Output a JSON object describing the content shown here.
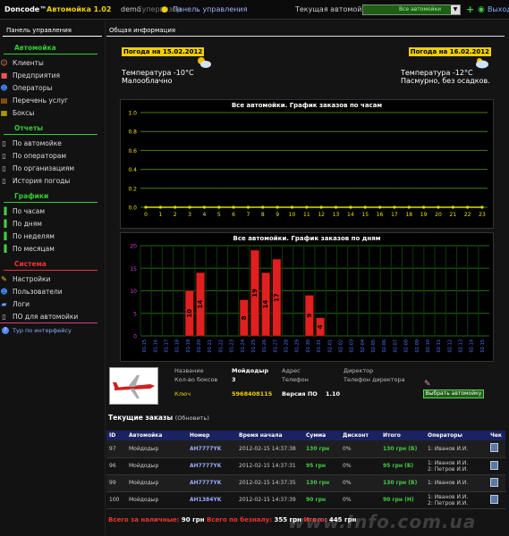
{
  "topbar": {
    "brand": "Doncode™",
    "app_name": "Автомойка 1.02",
    "user": "demo",
    "role": "Супервизор",
    "panel_link": "Панель управления",
    "current_wash_label": "Текущая автомойка",
    "current_wash_value": "Все автомойки",
    "exit": "Выход"
  },
  "sidebar": {
    "header": "Панель управления",
    "sections": [
      {
        "title": "Автомойка",
        "items": [
          "Клиенты",
          "Предприятия",
          "Операторы",
          "Перечень услуг",
          "Боксы"
        ]
      },
      {
        "title": "Отчеты",
        "items": [
          "По автомойке",
          "По операторам",
          "По организациям",
          "История погоды"
        ]
      },
      {
        "title": "Графики",
        "items": [
          "По часам",
          "По дням",
          "По неделям",
          "По месяцам"
        ]
      },
      {
        "title": "Система",
        "items": [
          "Настройки",
          "Пользователи",
          "Логи",
          "ПО для автомойки"
        ]
      }
    ],
    "tour": "Тур по интерфейсу"
  },
  "main": {
    "header": "Общая информация",
    "weather": [
      {
        "date": "Погода на 15.02.2012",
        "temp": "Температура -10°C",
        "desc": "Малооблачно"
      },
      {
        "date": "Погода на 16.02.2012",
        "temp": "Температура -12°C",
        "desc": "Пасмурно, без осадков."
      }
    ]
  },
  "chart_data": [
    {
      "type": "line",
      "title": "Все автомойки. График заказов по часам",
      "x": [
        "0",
        "1",
        "2",
        "3",
        "4",
        "5",
        "6",
        "7",
        "8",
        "9",
        "10",
        "11",
        "12",
        "13",
        "14",
        "15",
        "16",
        "17",
        "18",
        "19",
        "20",
        "21",
        "22",
        "23"
      ],
      "values": [
        0,
        0,
        0,
        0,
        0,
        0,
        0,
        0,
        0,
        0,
        0,
        0,
        0,
        0,
        0,
        0,
        0,
        0,
        0,
        0,
        0,
        0,
        0,
        0
      ],
      "yticks": [
        "0.0",
        "0.2",
        "0.4",
        "0.6",
        "0.8",
        "1.0"
      ],
      "ylim": [
        0,
        1
      ],
      "colors": {
        "line": "#d8e000",
        "grid": "#4a8000"
      }
    },
    {
      "type": "bar",
      "title": "Все автомойки. График заказов по дням",
      "categories": [
        "01-15",
        "01-16",
        "01-17",
        "01-18",
        "01-19",
        "01-20",
        "01-21",
        "01-22",
        "01-23",
        "01-24",
        "01-25",
        "01-26",
        "01-27",
        "01-28",
        "01-29",
        "01-30",
        "01-31",
        "02-01",
        "02-02",
        "02-03",
        "02-04",
        "02-05",
        "02-06",
        "02-07",
        "02-08",
        "02-09",
        "02-10",
        "02-11",
        "02-12",
        "02-13",
        "02-14",
        "02-15"
      ],
      "values": [
        0,
        0,
        0,
        0,
        10,
        14,
        0,
        0,
        0,
        8,
        19,
        14,
        17,
        0,
        0,
        9,
        4,
        0,
        0,
        0,
        0,
        0,
        0,
        0,
        0,
        0,
        0,
        0,
        0,
        0,
        0,
        0
      ],
      "yticks": [
        "0",
        "5",
        "10",
        "15",
        "20"
      ],
      "ylim": [
        0,
        20
      ],
      "colors": {
        "bar": "#e02020",
        "grid": "#1f6a10"
      }
    }
  ],
  "details": {
    "name_label": "Название",
    "name_value": "Мойдодыр",
    "address_label": "Адрес",
    "director_label": "Директор",
    "boxes_label": "Кол-во боксов",
    "boxes_value": "3",
    "phone_label": "Телефон",
    "director_phone_label": "Телефон директора",
    "key_label": "Ключ",
    "key_value": "5968408115",
    "version_label": "Версия ПО",
    "version_value": "1.10",
    "choose_button": "Выбрать автомойку"
  },
  "orders": {
    "title": "Текущие заказы",
    "refresh": "(Обновить)",
    "columns": [
      "ID",
      "Автомойка",
      "Номер",
      "Время начала",
      "Сумма",
      "Дисконт",
      "Итого",
      "Операторы",
      "Чек"
    ],
    "rows": [
      {
        "id": "97",
        "wash": "Мойдодыр",
        "plate": "AH7777YK",
        "start": "2012-02-15 14:37:38",
        "sum": "130 грн",
        "discount": "0%",
        "total": "130 грн (Б)",
        "ops": "1: Иванов И.И."
      },
      {
        "id": "96",
        "wash": "Мойдодыр",
        "plate": "AH7777YK",
        "start": "2012-02-15 14:37:31",
        "sum": "95 грн",
        "discount": "0%",
        "total": "95 грн (Б)",
        "ops": "1: Иванов И.И.\n2: Петров И.И."
      },
      {
        "id": "99",
        "wash": "Мойдодыр",
        "plate": "AH7777YK",
        "start": "2012-02-15 14:37:35",
        "sum": "130 грн",
        "discount": "0%",
        "total": "130 грн (Б)",
        "ops": "1: Иванов И.И."
      },
      {
        "id": "100",
        "wash": "Мойдодыр",
        "plate": "AH1384YK",
        "start": "2012-02-15 14:37:39",
        "sum": "90 грн",
        "discount": "0%",
        "total": "90 грн (Н)",
        "ops": "1: Иванов И.И.\n2: Петров И.И."
      }
    ],
    "totals_cash": "Всего за наличные:",
    "totals_cash_value": "90 грн",
    "totals_card": "Всего по безналу:",
    "totals_card_value": "355 грн",
    "totals_sum": "Итого:",
    "totals_sum_value": "445 грн"
  },
  "watermark": "www.Info.com.ua"
}
